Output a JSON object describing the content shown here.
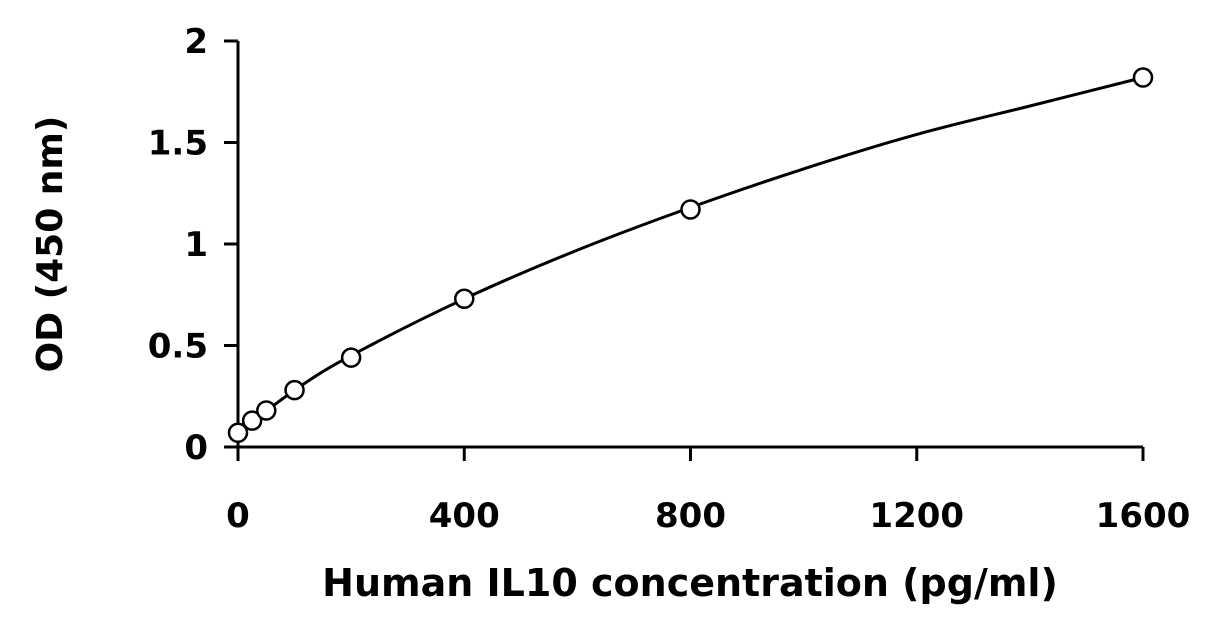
{
  "chart_data": {
    "type": "scatter",
    "title": "",
    "xlabel": "Human IL10 concentration (pg/ml)",
    "ylabel": "OD (450 nm)",
    "xlim": [
      0,
      1600
    ],
    "ylim": [
      0,
      2
    ],
    "x_ticks": [
      0,
      400,
      800,
      1200,
      1600
    ],
    "x_tick_labels": [
      "0",
      "400",
      "800",
      "1200",
      "1600"
    ],
    "y_ticks": [
      0,
      0.5,
      1,
      1.5,
      2
    ],
    "y_tick_labels": [
      "0",
      "0.5",
      "1",
      "1.5",
      "2"
    ],
    "grid": false,
    "legend": "none",
    "series": [
      {
        "marker": "open-circle",
        "color": "#000000",
        "x": [
          0,
          25,
          50,
          100,
          200,
          400,
          800,
          1600
        ],
        "y": [
          0.07,
          0.13,
          0.18,
          0.28,
          0.44,
          0.73,
          1.17,
          1.82
        ]
      }
    ],
    "fit_curve": {
      "type": "smooth",
      "color": "#000000",
      "x": [
        0,
        100,
        200,
        400,
        600,
        800,
        1000,
        1200,
        1400,
        1600
      ],
      "y": [
        0.07,
        0.28,
        0.45,
        0.73,
        0.97,
        1.18,
        1.37,
        1.54,
        1.68,
        1.82
      ]
    }
  }
}
